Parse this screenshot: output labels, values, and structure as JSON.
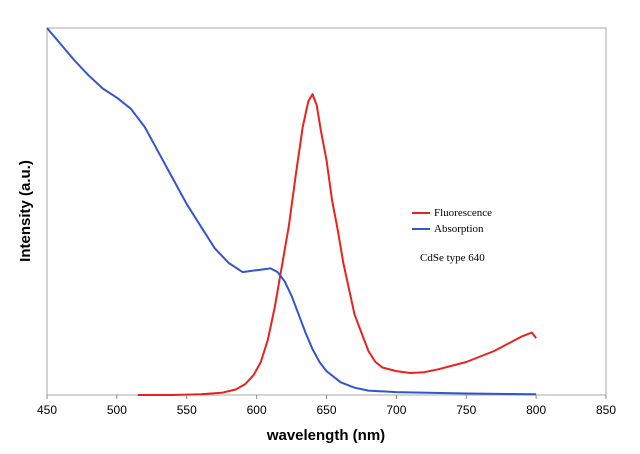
{
  "chart_data": {
    "type": "line",
    "xlabel": "wavelength (nm)",
    "ylabel": "Intensity (a.u.)",
    "xlim": [
      450,
      850
    ],
    "ylim": [
      0,
      1
    ],
    "x_ticks": [
      450,
      500,
      550,
      600,
      650,
      700,
      750,
      800,
      850
    ],
    "show_y_tick_labels": false,
    "grid": false,
    "legend_position": "right",
    "annotation": "CdSe type 640",
    "series": [
      {
        "name": "Fluorescence",
        "color": "#e8231d",
        "points": [
          [
            515,
            0.0
          ],
          [
            540,
            0.0
          ],
          [
            560,
            0.002
          ],
          [
            575,
            0.006
          ],
          [
            585,
            0.015
          ],
          [
            592,
            0.03
          ],
          [
            598,
            0.055
          ],
          [
            603,
            0.09
          ],
          [
            608,
            0.15
          ],
          [
            613,
            0.24
          ],
          [
            618,
            0.35
          ],
          [
            623,
            0.46
          ],
          [
            628,
            0.6
          ],
          [
            633,
            0.73
          ],
          [
            637,
            0.8
          ],
          [
            640,
            0.82
          ],
          [
            643,
            0.79
          ],
          [
            646,
            0.72
          ],
          [
            650,
            0.64
          ],
          [
            654,
            0.53
          ],
          [
            658,
            0.45
          ],
          [
            662,
            0.36
          ],
          [
            666,
            0.29
          ],
          [
            670,
            0.22
          ],
          [
            675,
            0.17
          ],
          [
            680,
            0.12
          ],
          [
            685,
            0.09
          ],
          [
            690,
            0.075
          ],
          [
            700,
            0.065
          ],
          [
            710,
            0.06
          ],
          [
            720,
            0.062
          ],
          [
            730,
            0.07
          ],
          [
            740,
            0.08
          ],
          [
            750,
            0.09
          ],
          [
            760,
            0.105
          ],
          [
            770,
            0.12
          ],
          [
            780,
            0.14
          ],
          [
            790,
            0.16
          ],
          [
            797,
            0.17
          ],
          [
            800,
            0.155
          ]
        ]
      },
      {
        "name": "Absorption",
        "color": "#3355cc",
        "points": [
          [
            450,
            1.0
          ],
          [
            460,
            0.955
          ],
          [
            470,
            0.91
          ],
          [
            480,
            0.87
          ],
          [
            490,
            0.835
          ],
          [
            500,
            0.81
          ],
          [
            510,
            0.78
          ],
          [
            520,
            0.73
          ],
          [
            530,
            0.66
          ],
          [
            540,
            0.59
          ],
          [
            550,
            0.52
          ],
          [
            560,
            0.46
          ],
          [
            570,
            0.4
          ],
          [
            580,
            0.36
          ],
          [
            590,
            0.335
          ],
          [
            600,
            0.34
          ],
          [
            610,
            0.345
          ],
          [
            615,
            0.335
          ],
          [
            620,
            0.31
          ],
          [
            625,
            0.27
          ],
          [
            630,
            0.22
          ],
          [
            635,
            0.17
          ],
          [
            640,
            0.125
          ],
          [
            645,
            0.09
          ],
          [
            650,
            0.065
          ],
          [
            660,
            0.035
          ],
          [
            670,
            0.02
          ],
          [
            680,
            0.012
          ],
          [
            700,
            0.008
          ],
          [
            750,
            0.004
          ],
          [
            800,
            0.002
          ]
        ]
      }
    ]
  }
}
